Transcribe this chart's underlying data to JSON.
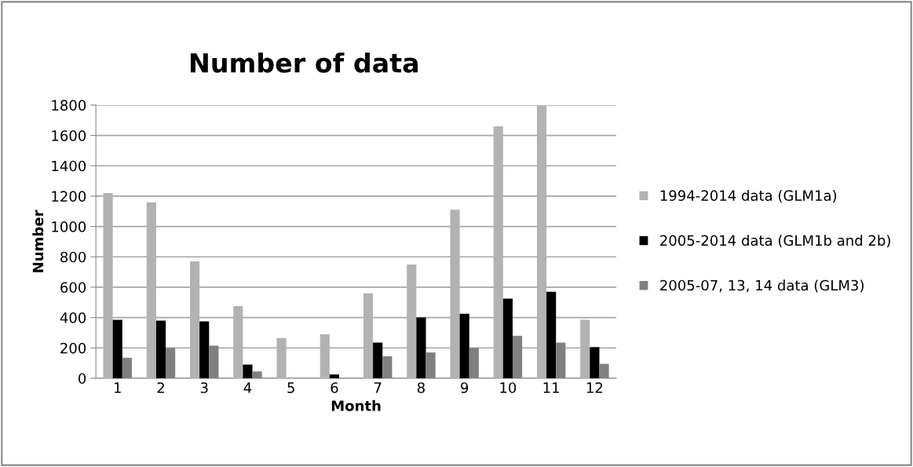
{
  "chart_data": {
    "type": "bar",
    "title": "Number of data",
    "xlabel": "Month",
    "ylabel": "Number",
    "categories": [
      "1",
      "2",
      "3",
      "4",
      "5",
      "6",
      "7",
      "8",
      "9",
      "10",
      "11",
      "12"
    ],
    "series": [
      {
        "name": "1994-2014 data (GLM1a)",
        "color": "#b2b2b2",
        "values": [
          1220,
          1160,
          770,
          475,
          265,
          290,
          560,
          750,
          1110,
          1660,
          1800,
          385
        ]
      },
      {
        "name": "2005-2014 data (GLM1b and 2b)",
        "color": "#000000",
        "values": [
          385,
          380,
          375,
          90,
          0,
          25,
          235,
          400,
          425,
          525,
          570,
          205
        ]
      },
      {
        "name": "2005-07, 13, 14 data (GLM3)",
        "color": "#808080",
        "values": [
          135,
          200,
          215,
          45,
          0,
          0,
          145,
          170,
          200,
          280,
          235,
          95
        ]
      }
    ],
    "ylim": [
      0,
      1800
    ],
    "yticks": [
      0,
      200,
      400,
      600,
      800,
      1000,
      1200,
      1400,
      1600,
      1800
    ],
    "grid": "y",
    "legend": "right"
  }
}
